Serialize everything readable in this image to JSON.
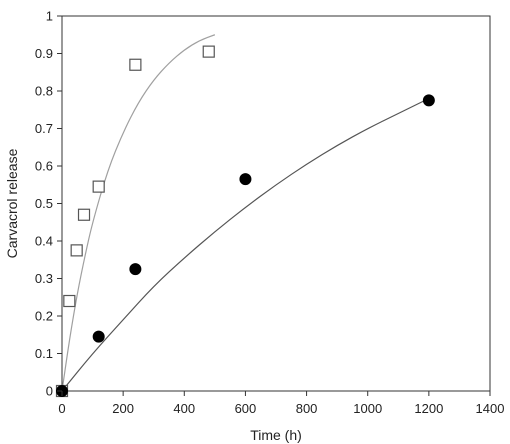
{
  "chart_data": {
    "type": "scatter",
    "title": "",
    "xlabel": "Time (h)",
    "ylabel": "Carvacrol release",
    "xlim": [
      0,
      1400
    ],
    "ylim": [
      0,
      1
    ],
    "xticks": [
      0,
      200,
      400,
      600,
      800,
      1000,
      1200,
      1400
    ],
    "yticks": [
      0,
      0.1,
      0.2,
      0.3,
      0.4,
      0.5,
      0.6,
      0.7,
      0.8,
      0.9,
      1
    ],
    "grid": false,
    "legend": "none",
    "series": [
      {
        "marker": "open-square",
        "color": "#555555",
        "points": [
          {
            "x": 0,
            "y": 0
          },
          {
            "x": 24,
            "y": 0.24
          },
          {
            "x": 48,
            "y": 0.375
          },
          {
            "x": 72,
            "y": 0.47
          },
          {
            "x": 120,
            "y": 0.545
          },
          {
            "x": 240,
            "y": 0.87
          },
          {
            "x": 480,
            "y": 0.905
          }
        ],
        "fit_curve": {
          "color": "#a0a0a0",
          "x_range": [
            0,
            500
          ],
          "points": [
            [
              0,
              0
            ],
            [
              25,
              0.14
            ],
            [
              50,
              0.26
            ],
            [
              75,
              0.36
            ],
            [
              100,
              0.45
            ],
            [
              150,
              0.59
            ],
            [
              200,
              0.69
            ],
            [
              250,
              0.77
            ],
            [
              300,
              0.83
            ],
            [
              350,
              0.875
            ],
            [
              400,
              0.91
            ],
            [
              450,
              0.935
            ],
            [
              500,
              0.95
            ]
          ]
        }
      },
      {
        "marker": "filled-circle",
        "color": "#000000",
        "points": [
          {
            "x": 0,
            "y": 0
          },
          {
            "x": 120,
            "y": 0.145
          },
          {
            "x": 240,
            "y": 0.325
          },
          {
            "x": 600,
            "y": 0.565
          },
          {
            "x": 1200,
            "y": 0.775
          }
        ],
        "fit_curve": {
          "color": "#555555",
          "x_range": [
            0,
            1200
          ],
          "points": [
            [
              0,
              0
            ],
            [
              100,
              0.1
            ],
            [
              200,
              0.19
            ],
            [
              300,
              0.28
            ],
            [
              400,
              0.355
            ],
            [
              500,
              0.425
            ],
            [
              600,
              0.49
            ],
            [
              700,
              0.55
            ],
            [
              800,
              0.605
            ],
            [
              900,
              0.655
            ],
            [
              1000,
              0.7
            ],
            [
              1100,
              0.74
            ],
            [
              1200,
              0.78
            ]
          ]
        }
      }
    ]
  }
}
